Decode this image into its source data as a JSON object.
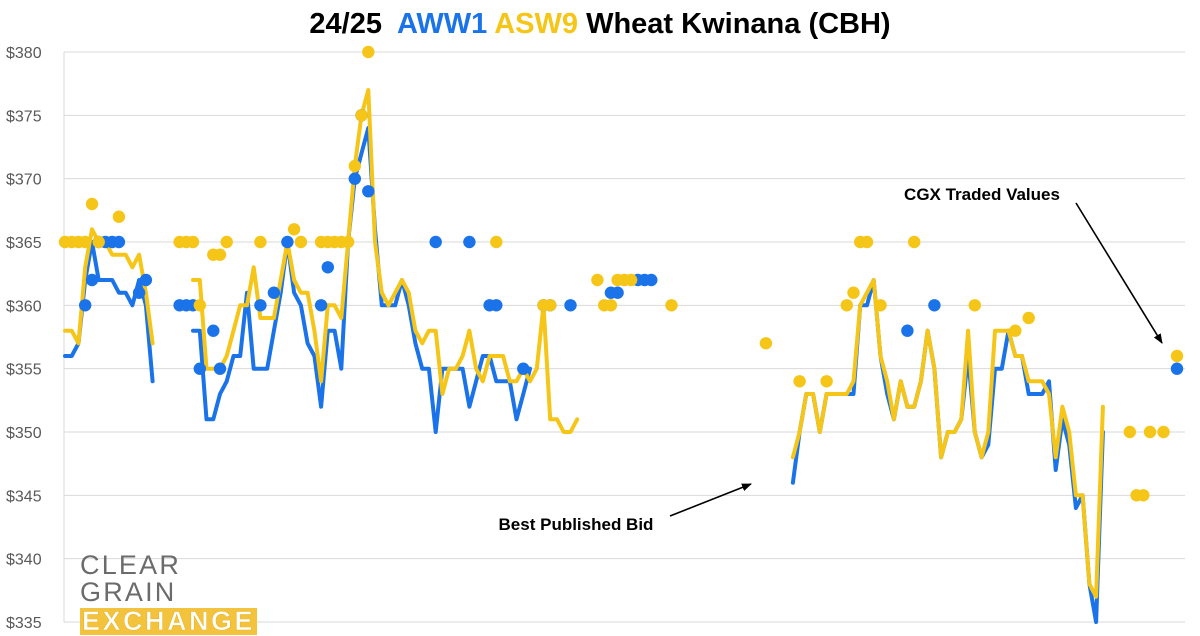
{
  "title": {
    "season": "24/25",
    "aww1": "AWW1",
    "asw9": "ASW9",
    "rest": "Wheat Kwinana (CBH)"
  },
  "logo": {
    "line1": "CLEAR GRAIN",
    "line2": "EXCHANGE"
  },
  "annotations": {
    "traded": "CGX Traded Values",
    "bid": "Best Published Bid"
  },
  "colors": {
    "aww1": "#1a73e8",
    "asw9": "#f5c518",
    "grid": "#d9d9d9",
    "axis_text": "#595959"
  },
  "chart_data": {
    "type": "line",
    "title": "24/25 AWW1 ASW9 Wheat Kwinana (CBH)",
    "ylim": [
      335,
      380
    ],
    "yticks": [
      335,
      340,
      345,
      350,
      355,
      360,
      365,
      370,
      375,
      380
    ],
    "ytick_labels": [
      "$335",
      "$340",
      "$345",
      "$350",
      "$355",
      "$360",
      "$365",
      "$370",
      "$375",
      "$380"
    ],
    "grid": true,
    "x_count": 160,
    "series": [
      {
        "name": "AWW1",
        "mark": "line",
        "segments": [
          {
            "start": 0,
            "values": [
              356,
              356,
              357,
              362,
              365,
              362,
              362,
              362,
              361,
              361,
              360,
              362,
              360,
              354
            ]
          },
          {
            "start": 19,
            "values": [
              358,
              358,
              351,
              351,
              353,
              354,
              356,
              356,
              361,
              355,
              355,
              355,
              358,
              361,
              365,
              361,
              360,
              357,
              356,
              352,
              358,
              358,
              355,
              365,
              370,
              372,
              374,
              366,
              360,
              360,
              360,
              362,
              360,
              357,
              355,
              355,
              350,
              355,
              355,
              355,
              355,
              352,
              354,
              356,
              356,
              354,
              354,
              354,
              351,
              353,
              355
            ]
          },
          {
            "start": 108,
            "values": [
              346,
              350,
              353,
              353,
              350,
              353,
              353,
              353,
              353,
              353,
              360,
              360,
              362,
              356,
              353,
              351,
              354,
              352,
              352,
              354,
              358,
              355,
              348,
              350,
              350,
              351,
              356,
              350,
              348,
              349,
              355,
              355,
              358,
              356,
              356,
              353,
              353,
              353,
              354,
              347,
              351,
              349,
              344,
              345,
              338,
              335,
              350
            ]
          }
        ]
      },
      {
        "name": "ASW9",
        "mark": "line",
        "segments": [
          {
            "start": 0,
            "values": [
              358,
              358,
              357,
              363,
              366,
              365,
              365,
              364,
              364,
              364,
              363,
              364,
              361,
              357
            ]
          },
          {
            "start": 19,
            "values": [
              362,
              362,
              355,
              355,
              355,
              356,
              358,
              360,
              360,
              363,
              359,
              359,
              359,
              362,
              365,
              362,
              361,
              361,
              358,
              354,
              360,
              360,
              359,
              365,
              371,
              375,
              377,
              365,
              361,
              360,
              361,
              362,
              361,
              358,
              357,
              358,
              358,
              353,
              355,
              355,
              356,
              358,
              355,
              354,
              356,
              356,
              356,
              354,
              354,
              355,
              354,
              355,
              360,
              351,
              351,
              350,
              350,
              351
            ]
          },
          {
            "start": 108,
            "values": [
              348,
              350,
              353,
              353,
              350,
              353,
              353,
              353,
              353,
              354,
              360,
              361,
              362,
              356,
              354,
              351,
              354,
              352,
              352,
              354,
              358,
              355,
              348,
              350,
              350,
              351,
              358,
              350,
              348,
              350,
              358,
              358,
              358,
              356,
              356,
              354,
              354,
              354,
              353,
              348,
              352,
              350,
              345,
              345,
              338,
              337,
              352
            ]
          }
        ]
      },
      {
        "name": "AWW1 traded",
        "mark": "dot",
        "points": [
          [
            3,
            360
          ],
          [
            4,
            362
          ],
          [
            5,
            365
          ],
          [
            6,
            365
          ],
          [
            7,
            365
          ],
          [
            8,
            365
          ],
          [
            11,
            361
          ],
          [
            12,
            362
          ],
          [
            17,
            360
          ],
          [
            18,
            360
          ],
          [
            19,
            360
          ],
          [
            20,
            355
          ],
          [
            22,
            358
          ],
          [
            23,
            355
          ],
          [
            29,
            360
          ],
          [
            31,
            361
          ],
          [
            33,
            365
          ],
          [
            38,
            360
          ],
          [
            39,
            363
          ],
          [
            43,
            370
          ],
          [
            44,
            375
          ],
          [
            45,
            369
          ],
          [
            55,
            365
          ],
          [
            60,
            365
          ],
          [
            63,
            360
          ],
          [
            64,
            360
          ],
          [
            68,
            355
          ],
          [
            71,
            360
          ],
          [
            72,
            360
          ],
          [
            75,
            360
          ],
          [
            81,
            361
          ],
          [
            82,
            361
          ],
          [
            85,
            362
          ],
          [
            86,
            362
          ],
          [
            87,
            362
          ],
          [
            125,
            358
          ],
          [
            129,
            360
          ],
          [
            165,
            355
          ]
        ]
      },
      {
        "name": "ASW9 traded",
        "mark": "dot",
        "points": [
          [
            0,
            365
          ],
          [
            1,
            365
          ],
          [
            2,
            365
          ],
          [
            3,
            365
          ],
          [
            4,
            368
          ],
          [
            5,
            365
          ],
          [
            8,
            367
          ],
          [
            17,
            365
          ],
          [
            18,
            365
          ],
          [
            19,
            365
          ],
          [
            20,
            360
          ],
          [
            22,
            364
          ],
          [
            23,
            364
          ],
          [
            24,
            365
          ],
          [
            29,
            365
          ],
          [
            34,
            366
          ],
          [
            35,
            365
          ],
          [
            38,
            365
          ],
          [
            39,
            365
          ],
          [
            40,
            365
          ],
          [
            41,
            365
          ],
          [
            42,
            365
          ],
          [
            43,
            371
          ],
          [
            44,
            375
          ],
          [
            45,
            380
          ],
          [
            64,
            365
          ],
          [
            71,
            360
          ],
          [
            72,
            360
          ],
          [
            79,
            362
          ],
          [
            80,
            360
          ],
          [
            81,
            360
          ],
          [
            82,
            362
          ],
          [
            83,
            362
          ],
          [
            84,
            362
          ],
          [
            90,
            360
          ],
          [
            104,
            357
          ],
          [
            109,
            354
          ],
          [
            113,
            354
          ],
          [
            116,
            360
          ],
          [
            117,
            361
          ],
          [
            118,
            365
          ],
          [
            119,
            365
          ],
          [
            121,
            360
          ],
          [
            126,
            365
          ],
          [
            135,
            360
          ],
          [
            141,
            358
          ],
          [
            143,
            359
          ],
          [
            158,
            350
          ],
          [
            159,
            345
          ],
          [
            160,
            345
          ],
          [
            161,
            350
          ],
          [
            163,
            350
          ],
          [
            165,
            356
          ]
        ]
      }
    ]
  }
}
